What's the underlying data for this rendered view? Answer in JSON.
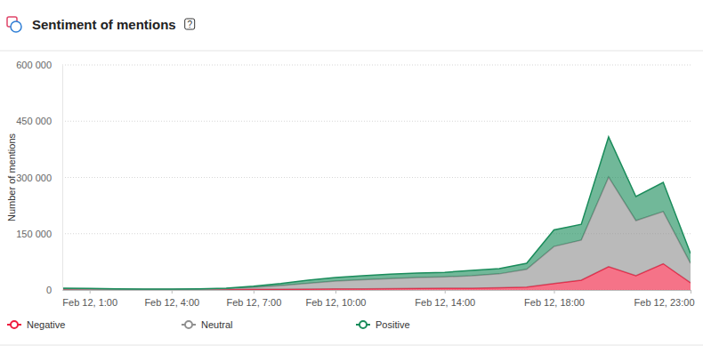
{
  "chart_data": {
    "type": "area",
    "title": "Sentiment of mentions",
    "help": "?",
    "y_label": "Number of mentions",
    "stacked": true,
    "grid": true,
    "legend": "bottom",
    "categories": [
      null,
      "Feb 12, 1:00",
      null,
      null,
      "Feb 12, 4:00",
      null,
      null,
      "Feb 12, 7:00",
      null,
      null,
      "Feb 12, 10:00",
      null,
      null,
      null,
      "Feb 12, 14:00",
      null,
      null,
      null,
      "Feb 12, 18:00",
      null,
      null,
      null,
      null,
      "Feb 12, 23:00"
    ],
    "ylim": [
      0,
      600000
    ],
    "yticks": [
      0,
      {
        "value": 150000,
        "label": "150 000"
      },
      {
        "value": 300000,
        "label": "300 000"
      },
      {
        "value": 450000,
        "label": "450 000"
      },
      {
        "value": 600000,
        "label": "600 000"
      }
    ],
    "series": [
      {
        "name": "Negative",
        "color": "#ef1d3f",
        "values": [
          1000,
          800,
          600,
          500,
          500,
          600,
          1000,
          1500,
          2000,
          2500,
          3000,
          3000,
          3500,
          4000,
          4500,
          5000,
          6000,
          8000,
          17000,
          26000,
          62000,
          38000,
          70000,
          19000
        ]
      },
      {
        "name": "Neutral",
        "color": "#8f8f8f",
        "values": [
          2000,
          1700,
          1400,
          1000,
          1000,
          1400,
          2500,
          5500,
          10000,
          15500,
          21000,
          24000,
          26500,
          29000,
          30500,
          33000,
          37000,
          47000,
          99000,
          107000,
          239000,
          147000,
          139000,
          52000
        ]
      },
      {
        "name": "Positive",
        "color": "#1a8c5b",
        "values": [
          2000,
          1500,
          1000,
          1000,
          1000,
          1000,
          1500,
          3000,
          5000,
          8000,
          9000,
          11000,
          12000,
          12000,
          12000,
          14000,
          14000,
          16000,
          44000,
          42000,
          107000,
          64000,
          78000,
          26000
        ]
      }
    ]
  }
}
